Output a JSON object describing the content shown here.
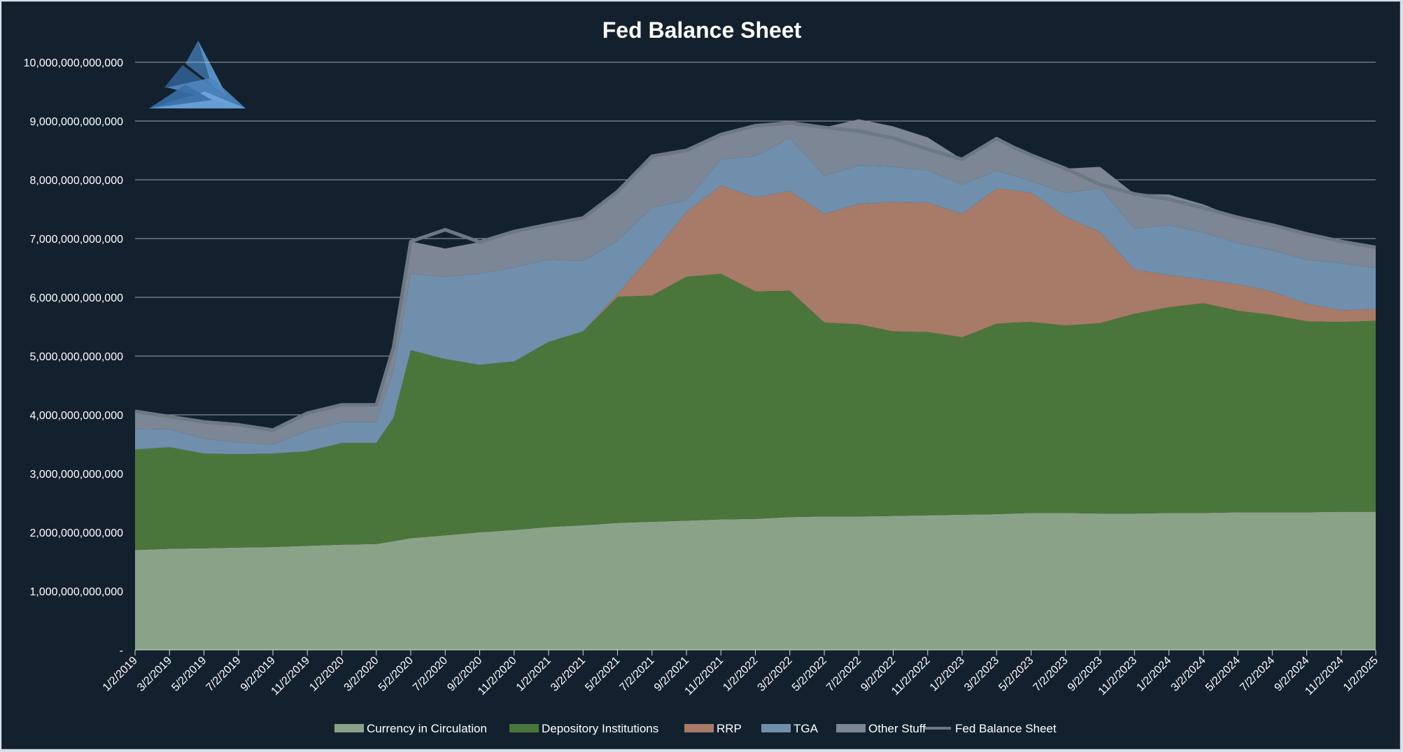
{
  "chart_data": {
    "type": "area",
    "stacked": true,
    "title": "Fed Balance Sheet",
    "xlabel": "",
    "ylabel": "",
    "ylim": [
      0,
      10000000000000
    ],
    "y_ticks": [
      {
        "value": 0,
        "label": "-"
      },
      {
        "value": 1000000000000,
        "label": "1,000,000,000,000"
      },
      {
        "value": 2000000000000,
        "label": "2,000,000,000,000"
      },
      {
        "value": 3000000000000,
        "label": "3,000,000,000,000"
      },
      {
        "value": 4000000000000,
        "label": "4,000,000,000,000"
      },
      {
        "value": 5000000000000,
        "label": "5,000,000,000,000"
      },
      {
        "value": 6000000000000,
        "label": "6,000,000,000,000"
      },
      {
        "value": 7000000000000,
        "label": "7,000,000,000,000"
      },
      {
        "value": 8000000000000,
        "label": "8,000,000,000,000"
      },
      {
        "value": 9000000000000,
        "label": "9,000,000,000,000"
      },
      {
        "value": 10000000000000,
        "label": "10,000,000,000,000"
      }
    ],
    "x_ticks": [
      "1/2/2019",
      "3/2/2019",
      "5/2/2019",
      "7/2/2019",
      "9/2/2019",
      "11/2/2019",
      "1/2/2020",
      "3/2/2020",
      "5/2/2020",
      "7/2/2020",
      "9/2/2020",
      "11/2/2020",
      "1/2/2021",
      "3/2/2021",
      "5/2/2021",
      "7/2/2021",
      "9/2/2021",
      "11/2/2021",
      "1/2/2022",
      "3/2/2022",
      "5/2/2022",
      "7/2/2022",
      "9/2/2022",
      "11/2/2022",
      "1/2/2023",
      "3/2/2023",
      "5/2/2023",
      "7/2/2023",
      "9/2/2023",
      "11/2/2023",
      "1/2/2024",
      "3/2/2024",
      "5/2/2024",
      "7/2/2024",
      "9/2/2024",
      "11/2/2024",
      "1/2/2025"
    ],
    "x": [
      "2019-01",
      "2019-03",
      "2019-05",
      "2019-07",
      "2019-09",
      "2019-11",
      "2020-01",
      "2020-03",
      "2020-04",
      "2020-05",
      "2020-07",
      "2020-09",
      "2020-11",
      "2021-01",
      "2021-03",
      "2021-05",
      "2021-07",
      "2021-09",
      "2021-11",
      "2022-01",
      "2022-03",
      "2022-05",
      "2022-07",
      "2022-09",
      "2022-11",
      "2023-01",
      "2023-03",
      "2023-04",
      "2023-05",
      "2023-07",
      "2023-09",
      "2023-11",
      "2024-01",
      "2024-03",
      "2024-05",
      "2024-07",
      "2024-09",
      "2024-11",
      "2025-01"
    ],
    "series": [
      {
        "name": "Currency in Circulation",
        "color": "#8aa388",
        "values": [
          1.7,
          1.72,
          1.73,
          1.74,
          1.75,
          1.77,
          1.79,
          1.8,
          1.85,
          1.9,
          1.95,
          2.0,
          2.04,
          2.09,
          2.12,
          2.16,
          2.18,
          2.2,
          2.22,
          2.23,
          2.26,
          2.27,
          2.27,
          2.28,
          2.29,
          2.3,
          2.31,
          2.32,
          2.33,
          2.33,
          2.32,
          2.32,
          2.33,
          2.33,
          2.34,
          2.34,
          2.34,
          2.35,
          2.35
        ]
      },
      {
        "name": "Depository Institutions",
        "color": "#4a763c",
        "values": [
          1.71,
          1.73,
          1.61,
          1.59,
          1.59,
          1.61,
          1.73,
          1.72,
          2.1,
          3.2,
          3.0,
          2.85,
          2.87,
          3.15,
          3.3,
          3.85,
          3.85,
          4.15,
          4.18,
          3.87,
          3.85,
          3.3,
          3.27,
          3.14,
          3.12,
          3.02,
          3.24,
          3.25,
          3.25,
          3.19,
          3.24,
          3.4,
          3.5,
          3.57,
          3.43,
          3.36,
          3.25,
          3.23,
          3.25
        ]
      },
      {
        "name": "RRP",
        "color": "#a87a68",
        "values": [
          0,
          0,
          0,
          0,
          0,
          0,
          0,
          0,
          0,
          0,
          0,
          0,
          0,
          0,
          0,
          0.05,
          0.7,
          1.1,
          1.5,
          1.6,
          1.7,
          1.85,
          2.05,
          2.2,
          2.2,
          2.1,
          2.3,
          2.25,
          2.2,
          1.85,
          1.55,
          0.75,
          0.55,
          0.4,
          0.45,
          0.4,
          0.3,
          0.2,
          0.2
        ]
      },
      {
        "name": "TGA",
        "color": "#6f8fad",
        "values": [
          0.35,
          0.3,
          0.25,
          0.2,
          0.15,
          0.35,
          0.35,
          0.35,
          0.8,
          1.3,
          1.4,
          1.55,
          1.6,
          1.4,
          1.2,
          0.9,
          0.8,
          0.2,
          0.45,
          0.7,
          0.9,
          0.65,
          0.65,
          0.6,
          0.55,
          0.5,
          0.3,
          0.25,
          0.2,
          0.4,
          0.75,
          0.7,
          0.85,
          0.8,
          0.7,
          0.7,
          0.75,
          0.8,
          0.7
        ]
      },
      {
        "name": "Other Stuff",
        "color": "#7c8694",
        "values": [
          0.3,
          0.22,
          0.29,
          0.3,
          0.25,
          0.3,
          0.3,
          0.3,
          0.4,
          0.55,
          0.48,
          0.54,
          0.61,
          0.6,
          0.73,
          0.84,
          0.87,
          0.86,
          0.42,
          0.52,
          0.26,
          0.82,
          0.79,
          0.69,
          0.56,
          0.43,
          0.55,
          0.48,
          0.44,
          0.42,
          0.36,
          0.59,
          0.52,
          0.48,
          0.43,
          0.43,
          0.44,
          0.37,
          0.35
        ]
      },
      {
        "name": "Fed Balance Sheet",
        "color": "#6d7885",
        "type": "line",
        "values": [
          4.06,
          3.97,
          3.88,
          3.83,
          3.74,
          4.03,
          4.17,
          4.17,
          5.15,
          6.95,
          7.15,
          6.94,
          7.12,
          7.24,
          7.35,
          7.8,
          8.4,
          8.5,
          8.77,
          8.92,
          8.97,
          8.89,
          8.83,
          8.71,
          8.52,
          8.35,
          8.7,
          8.55,
          8.42,
          8.19,
          7.92,
          7.76,
          7.67,
          7.52,
          7.36,
          7.23,
          7.08,
          6.95,
          6.85
        ]
      }
    ],
    "values_unit": "trillions USD",
    "legend_position": "bottom"
  }
}
